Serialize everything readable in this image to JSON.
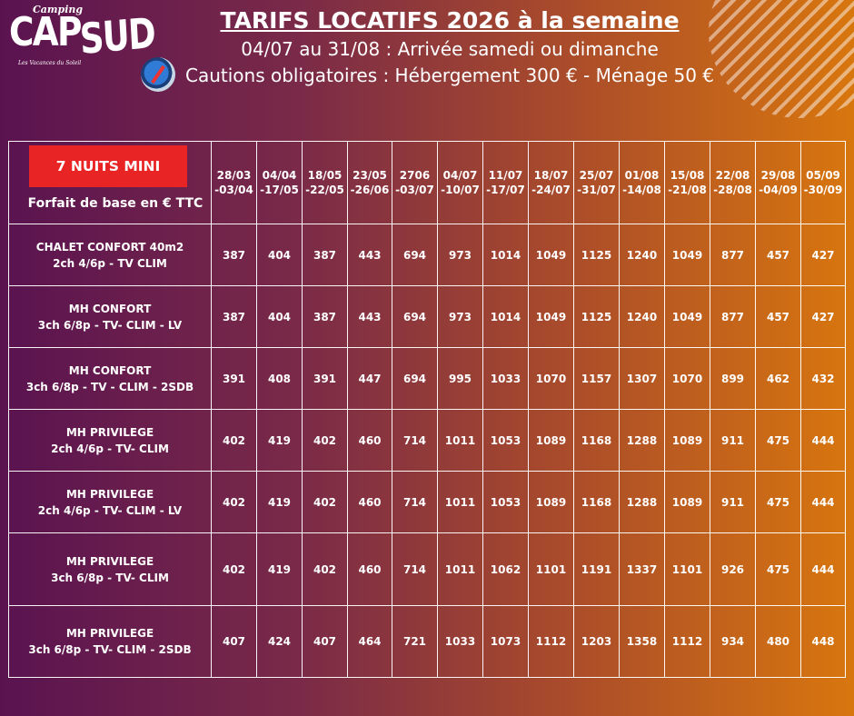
{
  "logo": {
    "top": "Camping",
    "cap": "CAP",
    "sud": "SUD",
    "tagline": "Les Vacances du Soleil"
  },
  "header": {
    "title": "TARIFS LOCATIFS 2026 à la semaine",
    "line1": "04/07 au 31/08 : Arrivée samedi ou dimanche",
    "line2": "Cautions obligatoires : Hébergement 300 € - Ménage 50 €"
  },
  "table": {
    "badge": "7 NUITS MINI",
    "corner_label": "Forfait de base en € TTC",
    "periods": [
      [
        "28/03",
        "-03/04"
      ],
      [
        "04/04",
        "-17/05"
      ],
      [
        "18/05",
        "-22/05"
      ],
      [
        "23/05",
        "-26/06"
      ],
      [
        "2706",
        "-03/07"
      ],
      [
        "04/07",
        "-10/07"
      ],
      [
        "11/07",
        "-17/07"
      ],
      [
        "18/07",
        "-24/07"
      ],
      [
        "25/07",
        "-31/07"
      ],
      [
        "01/08",
        "-14/08"
      ],
      [
        "15/08",
        "-21/08"
      ],
      [
        "22/08",
        "-28/08"
      ],
      [
        "29/08",
        "-04/09"
      ],
      [
        "05/09",
        "-30/09"
      ]
    ],
    "rows": [
      {
        "name": [
          "CHALET CONFORT 40m2",
          "2ch 4/6p - TV CLIM"
        ],
        "prices": [
          "387",
          "404",
          "387",
          "443",
          "694",
          "973",
          "1014",
          "1049",
          "1125",
          "1240",
          "1049",
          "877",
          "457",
          "427"
        ]
      },
      {
        "name": [
          "MH CONFORT",
          "3ch 6/8p - TV- CLIM - LV"
        ],
        "prices": [
          "387",
          "404",
          "387",
          "443",
          "694",
          "973",
          "1014",
          "1049",
          "1125",
          "1240",
          "1049",
          "877",
          "457",
          "427"
        ]
      },
      {
        "name": [
          "MH CONFORT",
          "3ch 6/8p - TV - CLIM - 2SDB"
        ],
        "prices": [
          "391",
          "408",
          "391",
          "447",
          "694",
          "995",
          "1033",
          "1070",
          "1157",
          "1307",
          "1070",
          "899",
          "462",
          "432"
        ]
      },
      {
        "name": [
          "MH PRIVILEGE",
          "2ch 4/6p - TV- CLIM"
        ],
        "prices": [
          "402",
          "419",
          "402",
          "460",
          "714",
          "1011",
          "1053",
          "1089",
          "1168",
          "1288",
          "1089",
          "911",
          "475",
          "444"
        ]
      },
      {
        "name": [
          "MH PRIVILEGE",
          "2ch 4/6p - TV- CLIM - LV"
        ],
        "prices": [
          "402",
          "419",
          "402",
          "460",
          "714",
          "1011",
          "1053",
          "1089",
          "1168",
          "1288",
          "1089",
          "911",
          "475",
          "444"
        ]
      },
      {
        "name": [
          "MH PRIVILEGE",
          "3ch 6/8p - TV- CLIM"
        ],
        "prices": [
          "402",
          "419",
          "402",
          "460",
          "714",
          "1011",
          "1062",
          "1101",
          "1191",
          "1337",
          "1101",
          "926",
          "475",
          "444"
        ]
      },
      {
        "name": [
          "MH PRIVILEGE",
          "3ch 6/8p - TV- CLIM - 2SDB"
        ],
        "prices": [
          "407",
          "424",
          "407",
          "464",
          "721",
          "1033",
          "1073",
          "1112",
          "1203",
          "1358",
          "1112",
          "934",
          "480",
          "448"
        ]
      }
    ]
  }
}
